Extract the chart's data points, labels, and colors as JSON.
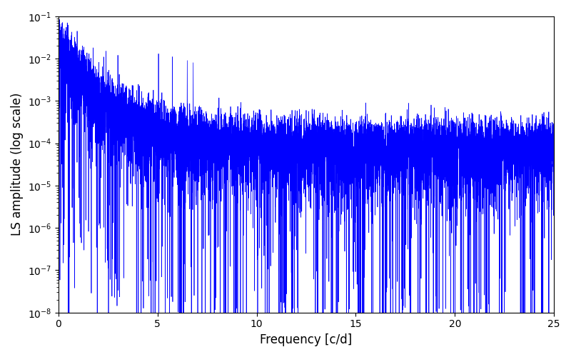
{
  "xlabel": "Frequency [c/d]",
  "ylabel": "LS amplitude (log scale)",
  "xlim": [
    0,
    25
  ],
  "ylim_log_min": -8,
  "ylim_log_max": -1,
  "line_color": "#0000ff",
  "line_width": 0.5,
  "background_color": "#ffffff",
  "freq_min": 0.0,
  "freq_max": 25.0,
  "n_points": 8000,
  "seed": 7,
  "figsize": [
    8.0,
    5.0
  ],
  "dpi": 100
}
